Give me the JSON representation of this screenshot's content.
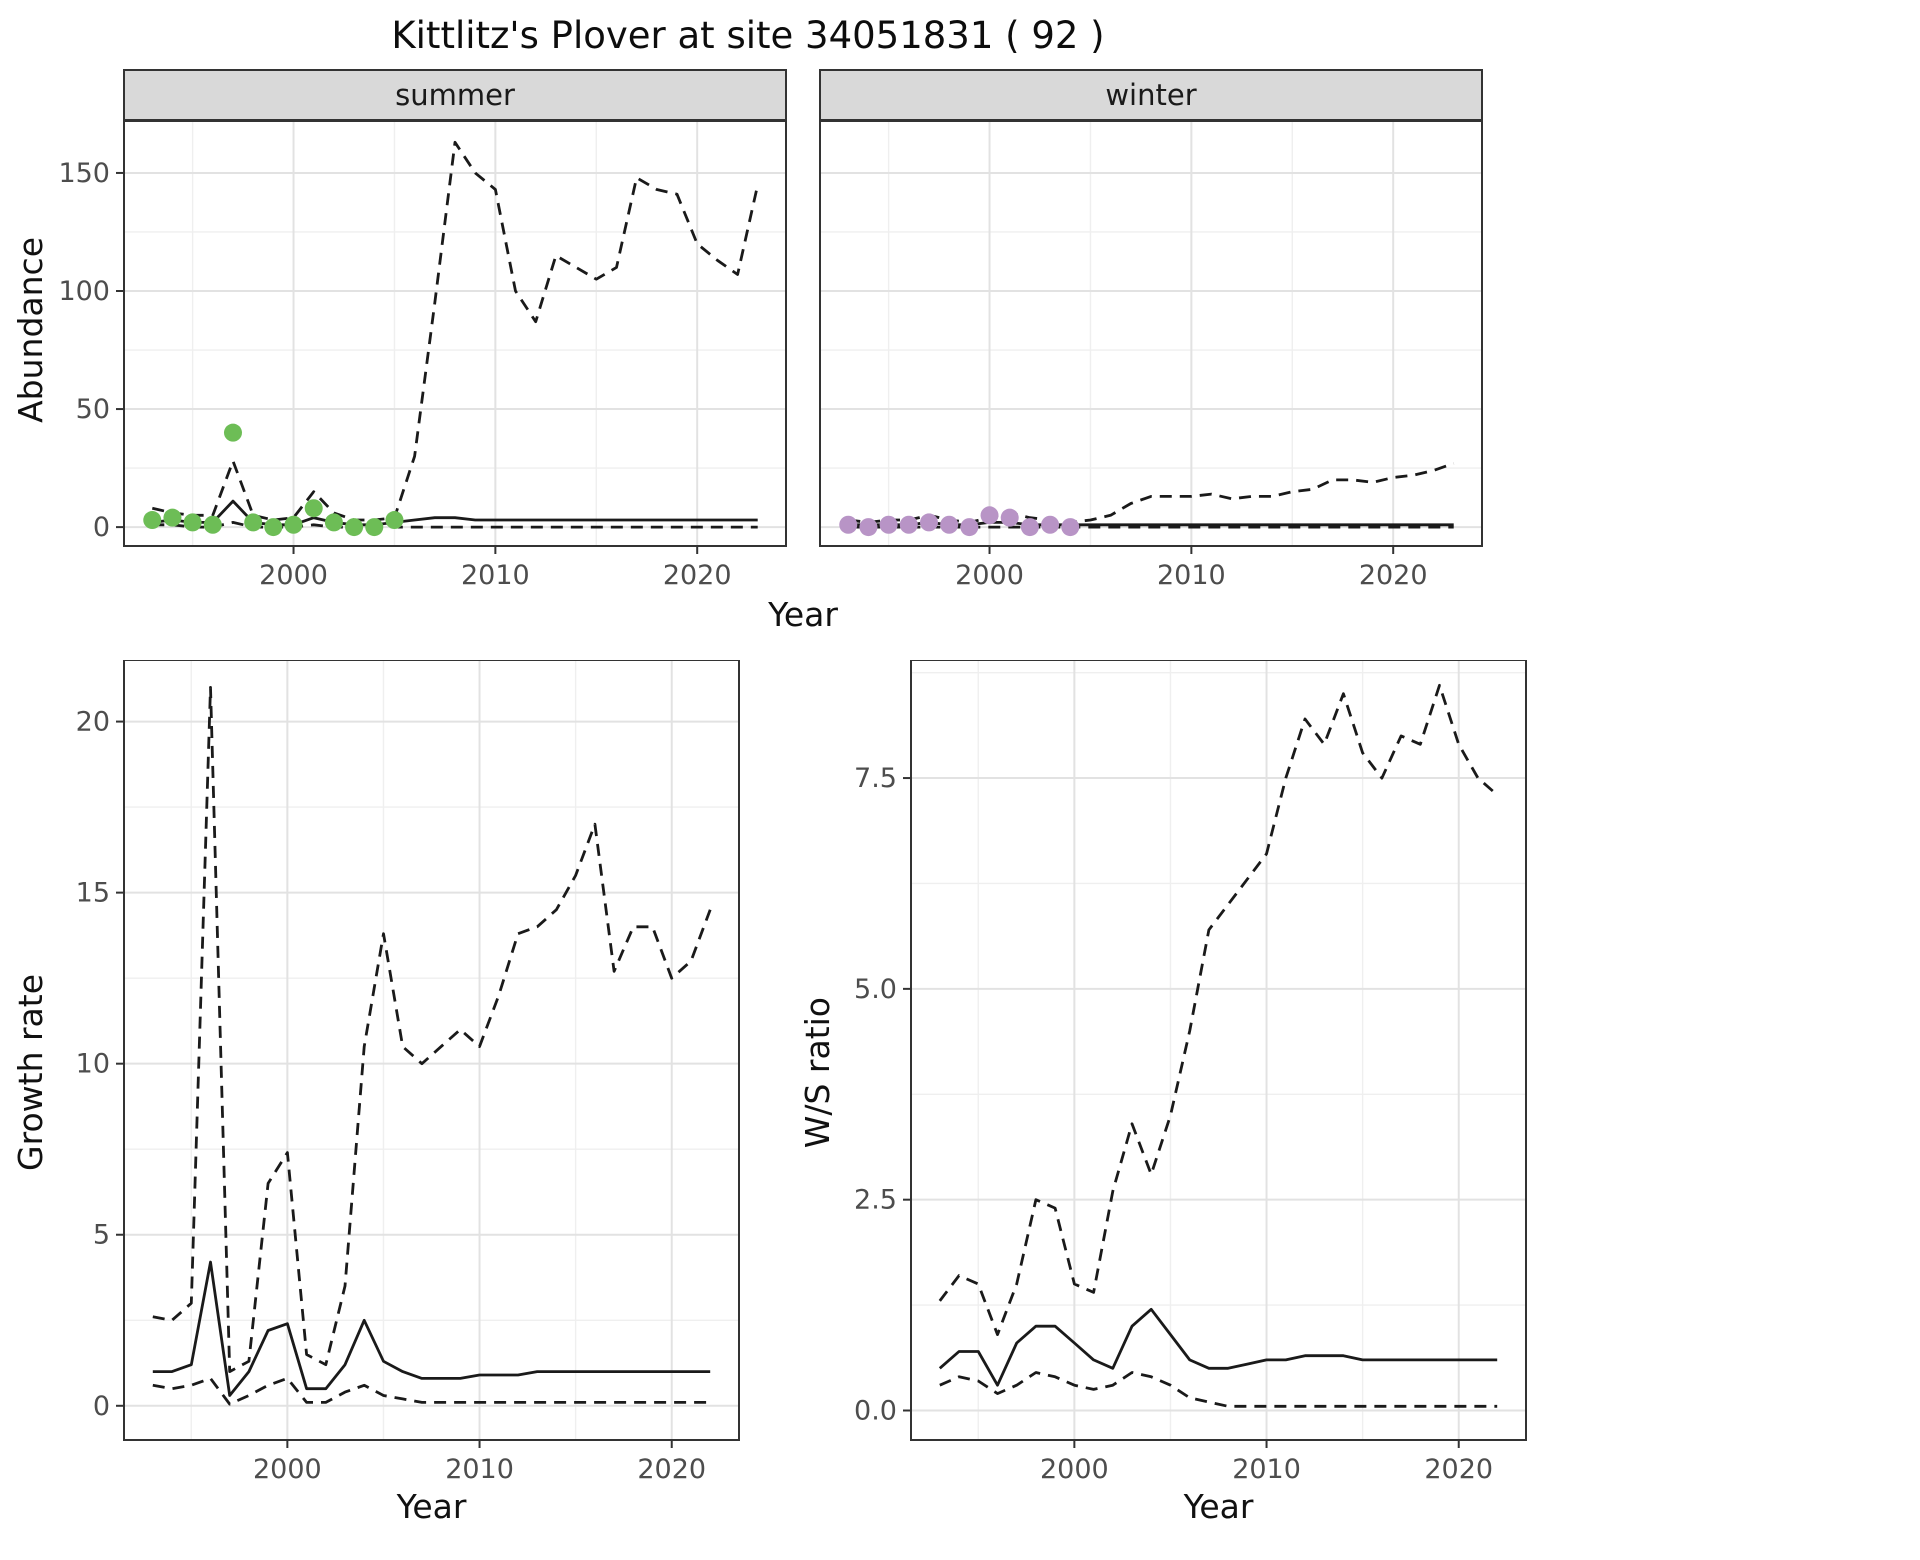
{
  "title": "Kittlitz's Plover at site 34051831 ( 92 )",
  "colors": {
    "line": "#1a1a1a",
    "observed_summer": "#6dbd56",
    "observed_winter": "#b894c6",
    "strip_bg": "#d9d9d9",
    "panel_border": "#333333",
    "grid_major": "#e2e2e2",
    "grid_minor": "#efefef",
    "tick_text": "#4d4d4d"
  },
  "abundance": {
    "ylabel": "Abundance",
    "xlabel": "Year",
    "facets": [
      {
        "label": "summer"
      },
      {
        "label": "winter"
      }
    ]
  },
  "growth": {
    "ylabel": "Growth rate",
    "xlabel": "Year"
  },
  "ws": {
    "ylabel": "W/S ratio",
    "xlabel": "Year"
  },
  "chart_data": [
    {
      "id": "summer",
      "type": "line",
      "strip": "summer",
      "xlabel": "Year",
      "ylabel": "Abundance",
      "xlim": [
        1991.6,
        2024.4
      ],
      "ylim": [
        -8,
        172
      ],
      "xticks": [
        2000,
        2010,
        2020
      ],
      "xtick_labels": [
        "2000",
        "2010",
        "2020"
      ],
      "yticks": [
        0,
        50,
        100,
        150
      ],
      "ytick_labels": [
        "0",
        "50",
        "100",
        "150"
      ],
      "show_yticks": true,
      "grid": true,
      "layout": {
        "ml": 72,
        "pw": 662,
        "ph": 425,
        "mb": 45,
        "mr": 8,
        "strip_h": 52
      },
      "series": [
        {
          "name": "upper-ci",
          "style": "dashed",
          "x": [
            1993,
            1994,
            1995,
            1996,
            1997,
            1998,
            1999,
            2000,
            2001,
            2002,
            2003,
            2004,
            2005,
            2006,
            2007,
            2008,
            2009,
            2010,
            2011,
            2012,
            2013,
            2014,
            2015,
            2016,
            2017,
            2018,
            2019,
            2020,
            2021,
            2022,
            2023
          ],
          "y": [
            8,
            6,
            5,
            5,
            28,
            5,
            3,
            4,
            15,
            6,
            3,
            3,
            4,
            30,
            95,
            163,
            150,
            143,
            100,
            87,
            115,
            110,
            105,
            110,
            148,
            143,
            141,
            120,
            113,
            107,
            145
          ]
        },
        {
          "name": "lower-ci",
          "style": "dashed",
          "x": [
            1993,
            1994,
            1995,
            1996,
            1997,
            1998,
            1999,
            2000,
            2001,
            2002,
            2003,
            2004,
            2005,
            2006,
            2007,
            2008,
            2009,
            2010,
            2011,
            2012,
            2013,
            2014,
            2015,
            2016,
            2017,
            2018,
            2019,
            2020,
            2021,
            2022,
            2023
          ],
          "y": [
            1,
            1,
            0,
            0,
            2,
            0,
            0,
            0,
            1,
            0,
            0,
            0,
            0,
            0,
            0,
            0,
            0,
            0,
            0,
            0,
            0,
            0,
            0,
            0,
            0,
            0,
            0,
            0,
            0,
            0,
            0
          ]
        },
        {
          "name": "median",
          "style": "solid",
          "x": [
            1993,
            1994,
            1995,
            1996,
            1997,
            1998,
            1999,
            2000,
            2001,
            2002,
            2003,
            2004,
            2005,
            2006,
            2007,
            2008,
            2009,
            2010,
            2011,
            2012,
            2013,
            2014,
            2015,
            2016,
            2017,
            2018,
            2019,
            2020,
            2021,
            2022,
            2023
          ],
          "y": [
            2,
            3,
            2,
            2,
            11,
            2,
            1,
            1,
            4,
            2,
            1,
            1,
            2,
            3,
            4,
            4,
            3,
            3,
            3,
            3,
            3,
            3,
            3,
            3,
            3,
            3,
            3,
            3,
            3,
            3,
            3
          ]
        },
        {
          "name": "observed",
          "style": "points",
          "color": "#6dbd56",
          "x": [
            1993,
            1994,
            1995,
            1996,
            1997,
            1998,
            1999,
            2000,
            2001,
            2002,
            2003,
            2004,
            2005
          ],
          "y": [
            3,
            4,
            2,
            1,
            40,
            2,
            0,
            1,
            8,
            2,
            0,
            0,
            3
          ]
        }
      ]
    },
    {
      "id": "winter",
      "type": "line",
      "strip": "winter",
      "xlabel": "Year",
      "ylabel": "Abundance",
      "xlim": [
        1991.6,
        2024.4
      ],
      "ylim": [
        -8,
        172
      ],
      "xticks": [
        2000,
        2010,
        2020
      ],
      "xtick_labels": [
        "2000",
        "2010",
        "2020"
      ],
      "yticks": [
        0,
        50,
        100,
        150
      ],
      "ytick_labels": [
        "0",
        "50",
        "100",
        "150"
      ],
      "show_yticks": false,
      "grid": true,
      "layout": {
        "ml": 26,
        "pw": 662,
        "ph": 425,
        "mb": 45,
        "mr": 8,
        "strip_h": 52
      },
      "series": [
        {
          "name": "upper-ci",
          "style": "dashed",
          "x": [
            1993,
            1994,
            1995,
            1996,
            1997,
            1998,
            1999,
            2000,
            2001,
            2002,
            2003,
            2004,
            2005,
            2006,
            2007,
            2008,
            2009,
            2010,
            2011,
            2012,
            2013,
            2014,
            2015,
            2016,
            2017,
            2018,
            2019,
            2020,
            2021,
            2022,
            2023
          ],
          "y": [
            3,
            2,
            3,
            3,
            5,
            3,
            2,
            4,
            6,
            4,
            3,
            2,
            3,
            5,
            10,
            13,
            13,
            13,
            14,
            12,
            13,
            13,
            15,
            16,
            20,
            20,
            19,
            21,
            22,
            24,
            27
          ]
        },
        {
          "name": "lower-ci",
          "style": "dashed",
          "x": [
            1993,
            1994,
            1995,
            1996,
            1997,
            1998,
            1999,
            2000,
            2001,
            2002,
            2003,
            2004,
            2005,
            2006,
            2007,
            2008,
            2009,
            2010,
            2011,
            2012,
            2013,
            2014,
            2015,
            2016,
            2017,
            2018,
            2019,
            2020,
            2021,
            2022,
            2023
          ],
          "y": [
            0,
            0,
            0,
            0,
            0,
            0,
            0,
            0,
            0,
            0,
            0,
            0,
            0,
            0,
            0,
            0,
            0,
            0,
            0,
            0,
            0,
            0,
            0,
            0,
            0,
            0,
            0,
            0,
            0,
            0,
            0
          ]
        },
        {
          "name": "median",
          "style": "solid",
          "x": [
            1993,
            1994,
            1995,
            1996,
            1997,
            1998,
            1999,
            2000,
            2001,
            2002,
            2003,
            2004,
            2005,
            2006,
            2007,
            2008,
            2009,
            2010,
            2011,
            2012,
            2013,
            2014,
            2015,
            2016,
            2017,
            2018,
            2019,
            2020,
            2021,
            2022,
            2023
          ],
          "y": [
            1,
            1,
            1,
            1,
            2,
            1,
            1,
            2,
            2,
            1,
            1,
            1,
            1,
            1,
            1,
            1,
            1,
            1,
            1,
            1,
            1,
            1,
            1,
            1,
            1,
            1,
            1,
            1,
            1,
            1,
            1
          ]
        },
        {
          "name": "observed",
          "style": "points",
          "color": "#b894c6",
          "x": [
            1993,
            1994,
            1995,
            1996,
            1997,
            1998,
            1999,
            2000,
            2001,
            2002,
            2003,
            2004
          ],
          "y": [
            1,
            0,
            1,
            1,
            2,
            1,
            0,
            5,
            4,
            0,
            1,
            0
          ]
        }
      ]
    },
    {
      "id": "growth",
      "type": "line",
      "strip": null,
      "xlabel": "Year",
      "ylabel": "Growth rate",
      "xlim": [
        1991.5,
        2023.5
      ],
      "ylim": [
        -1,
        21.8
      ],
      "xticks": [
        2000,
        2010,
        2020
      ],
      "xtick_labels": [
        "2000",
        "2010",
        "2020"
      ],
      "yticks": [
        0,
        5,
        10,
        15,
        20
      ],
      "ytick_labels": [
        "0",
        "5",
        "10",
        "15",
        "20"
      ],
      "show_yticks": true,
      "grid": true,
      "layout": {
        "ml": 72,
        "pw": 615,
        "ph": 780,
        "mb": 45,
        "mr": 10,
        "strip_h": 0
      },
      "series": [
        {
          "name": "upper-ci",
          "style": "dashed",
          "x": [
            1993,
            1994,
            1995,
            1996,
            1997,
            1998,
            1999,
            2000,
            2001,
            2002,
            2003,
            2004,
            2005,
            2006,
            2007,
            2008,
            2009,
            2010,
            2011,
            2012,
            2013,
            2014,
            2015,
            2016,
            2017,
            2018,
            2019,
            2020,
            2021,
            2022
          ],
          "y": [
            2.6,
            2.5,
            3.0,
            21.0,
            1.0,
            1.3,
            6.5,
            7.4,
            1.5,
            1.2,
            3.5,
            10.5,
            13.8,
            10.5,
            10.0,
            10.5,
            11.0,
            10.5,
            12.0,
            13.8,
            14.0,
            14.5,
            15.5,
            17.0,
            12.7,
            14.0,
            14.0,
            12.5,
            13.0,
            14.5
          ]
        },
        {
          "name": "lower-ci",
          "style": "dashed",
          "x": [
            1993,
            1994,
            1995,
            1996,
            1997,
            1998,
            1999,
            2000,
            2001,
            2002,
            2003,
            2004,
            2005,
            2006,
            2007,
            2008,
            2009,
            2010,
            2011,
            2012,
            2013,
            2014,
            2015,
            2016,
            2017,
            2018,
            2019,
            2020,
            2021,
            2022
          ],
          "y": [
            0.6,
            0.5,
            0.6,
            0.8,
            0.05,
            0.3,
            0.6,
            0.8,
            0.1,
            0.1,
            0.4,
            0.6,
            0.3,
            0.2,
            0.1,
            0.1,
            0.1,
            0.1,
            0.1,
            0.1,
            0.1,
            0.1,
            0.1,
            0.1,
            0.1,
            0.1,
            0.1,
            0.1,
            0.1,
            0.1
          ]
        },
        {
          "name": "median",
          "style": "solid",
          "x": [
            1993,
            1994,
            1995,
            1996,
            1997,
            1998,
            1999,
            2000,
            2001,
            2002,
            2003,
            2004,
            2005,
            2006,
            2007,
            2008,
            2009,
            2010,
            2011,
            2012,
            2013,
            2014,
            2015,
            2016,
            2017,
            2018,
            2019,
            2020,
            2021,
            2022
          ],
          "y": [
            1.0,
            1.0,
            1.2,
            4.2,
            0.3,
            1.0,
            2.2,
            2.4,
            0.5,
            0.5,
            1.2,
            2.5,
            1.3,
            1.0,
            0.8,
            0.8,
            0.8,
            0.9,
            0.9,
            0.9,
            1.0,
            1.0,
            1.0,
            1.0,
            1.0,
            1.0,
            1.0,
            1.0,
            1.0,
            1.0
          ]
        }
      ]
    },
    {
      "id": "ws",
      "type": "line",
      "strip": null,
      "xlabel": "Year",
      "ylabel": "W/S ratio",
      "xlim": [
        1991.5,
        2023.5
      ],
      "ylim": [
        -0.35,
        8.9
      ],
      "xticks": [
        2000,
        2010,
        2020
      ],
      "xtick_labels": [
        "2000",
        "2010",
        "2020"
      ],
      "yticks": [
        0,
        2.5,
        5,
        7.5
      ],
      "ytick_labels": [
        "0.0",
        "2.5",
        "5.0",
        "7.5"
      ],
      "show_yticks": true,
      "grid": true,
      "layout": {
        "ml": 72,
        "pw": 615,
        "ph": 780,
        "mb": 45,
        "mr": 10,
        "strip_h": 0
      },
      "series": [
        {
          "name": "upper-ci",
          "style": "dashed",
          "x": [
            1993,
            1994,
            1995,
            1996,
            1997,
            1998,
            1999,
            2000,
            2001,
            2002,
            2003,
            2004,
            2005,
            2006,
            2007,
            2008,
            2009,
            2010,
            2011,
            2012,
            2013,
            2014,
            2015,
            2016,
            2017,
            2018,
            2019,
            2020,
            2021,
            2022
          ],
          "y": [
            1.3,
            1.6,
            1.5,
            0.9,
            1.5,
            2.5,
            2.4,
            1.5,
            1.4,
            2.6,
            3.4,
            2.8,
            3.5,
            4.5,
            5.7,
            6.0,
            6.3,
            6.6,
            7.5,
            8.2,
            7.9,
            8.5,
            7.8,
            7.5,
            8.0,
            7.9,
            8.6,
            7.9,
            7.5,
            7.3
          ]
        },
        {
          "name": "lower-ci",
          "style": "dashed",
          "x": [
            1993,
            1994,
            1995,
            1996,
            1997,
            1998,
            1999,
            2000,
            2001,
            2002,
            2003,
            2004,
            2005,
            2006,
            2007,
            2008,
            2009,
            2010,
            2011,
            2012,
            2013,
            2014,
            2015,
            2016,
            2017,
            2018,
            2019,
            2020,
            2021,
            2022
          ],
          "y": [
            0.3,
            0.4,
            0.35,
            0.2,
            0.3,
            0.45,
            0.4,
            0.3,
            0.25,
            0.3,
            0.45,
            0.4,
            0.3,
            0.15,
            0.1,
            0.05,
            0.05,
            0.05,
            0.05,
            0.05,
            0.05,
            0.05,
            0.05,
            0.05,
            0.05,
            0.05,
            0.05,
            0.05,
            0.05,
            0.05
          ]
        },
        {
          "name": "median",
          "style": "solid",
          "x": [
            1993,
            1994,
            1995,
            1996,
            1997,
            1998,
            1999,
            2000,
            2001,
            2002,
            2003,
            2004,
            2005,
            2006,
            2007,
            2008,
            2009,
            2010,
            2011,
            2012,
            2013,
            2014,
            2015,
            2016,
            2017,
            2018,
            2019,
            2020,
            2021,
            2022
          ],
          "y": [
            0.5,
            0.7,
            0.7,
            0.3,
            0.8,
            1.0,
            1.0,
            0.8,
            0.6,
            0.5,
            1.0,
            1.2,
            0.9,
            0.6,
            0.5,
            0.5,
            0.55,
            0.6,
            0.6,
            0.65,
            0.65,
            0.65,
            0.6,
            0.6,
            0.6,
            0.6,
            0.6,
            0.6,
            0.6,
            0.6
          ]
        }
      ]
    }
  ]
}
